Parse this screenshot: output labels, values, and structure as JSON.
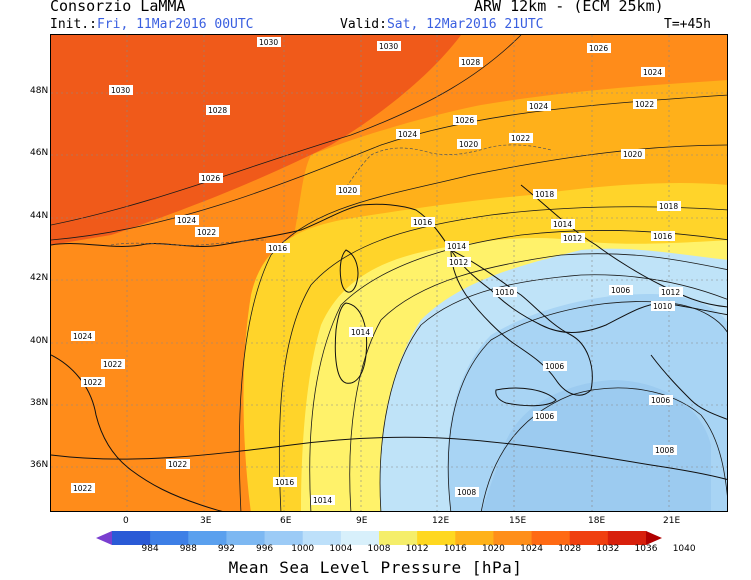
{
  "header": {
    "org": "Consorzio LaMMA",
    "model": "ARW 12km - (ECM 25km)",
    "init_label": "Init.:",
    "init_value": "Fri, 11Mar2016 00UTC",
    "valid_label": "Valid:",
    "valid_value": "Sat, 12Mar2016 21UTC",
    "lead": "T=+45h"
  },
  "axes": {
    "lat_labels": [
      "48N",
      "46N",
      "44N",
      "42N",
      "40N",
      "38N",
      "36N"
    ],
    "lon_labels": [
      "0",
      "3E",
      "6E",
      "9E",
      "12E",
      "15E",
      "18E",
      "21E"
    ]
  },
  "isobars": [
    "1030",
    "1030",
    "1028",
    "1026",
    "1024",
    "1022",
    "1020",
    "1018",
    "1016",
    "1014",
    "1012",
    "1010",
    "1008",
    "1006"
  ],
  "colorbar": {
    "title": "Mean Sea Level Pressure [hPa]",
    "levels": [
      "984",
      "988",
      "992",
      "996",
      "1000",
      "1004",
      "1008",
      "1012",
      "1016",
      "1020",
      "1024",
      "1028",
      "1032",
      "1036",
      "1040"
    ],
    "colors": [
      "#7a3fd0",
      "#2a5ad6",
      "#3d7fe6",
      "#5aa0ee",
      "#7db8f2",
      "#9ccbf6",
      "#bde0fa",
      "#d8f0fb",
      "#f5ee6a",
      "#ffd820",
      "#ffb21a",
      "#ff8f1a",
      "#ff6a14",
      "#f04010",
      "#d8200c",
      "#b00000"
    ]
  },
  "map_colors": {
    "high": "#f05a1a",
    "orange": "#ff8c1a",
    "light_orange": "#ffb01a",
    "yellow": "#ffd42a",
    "pale_yellow": "#fff26a",
    "pale_blue": "#bfe3f8",
    "blue": "#9ccbf0"
  }
}
